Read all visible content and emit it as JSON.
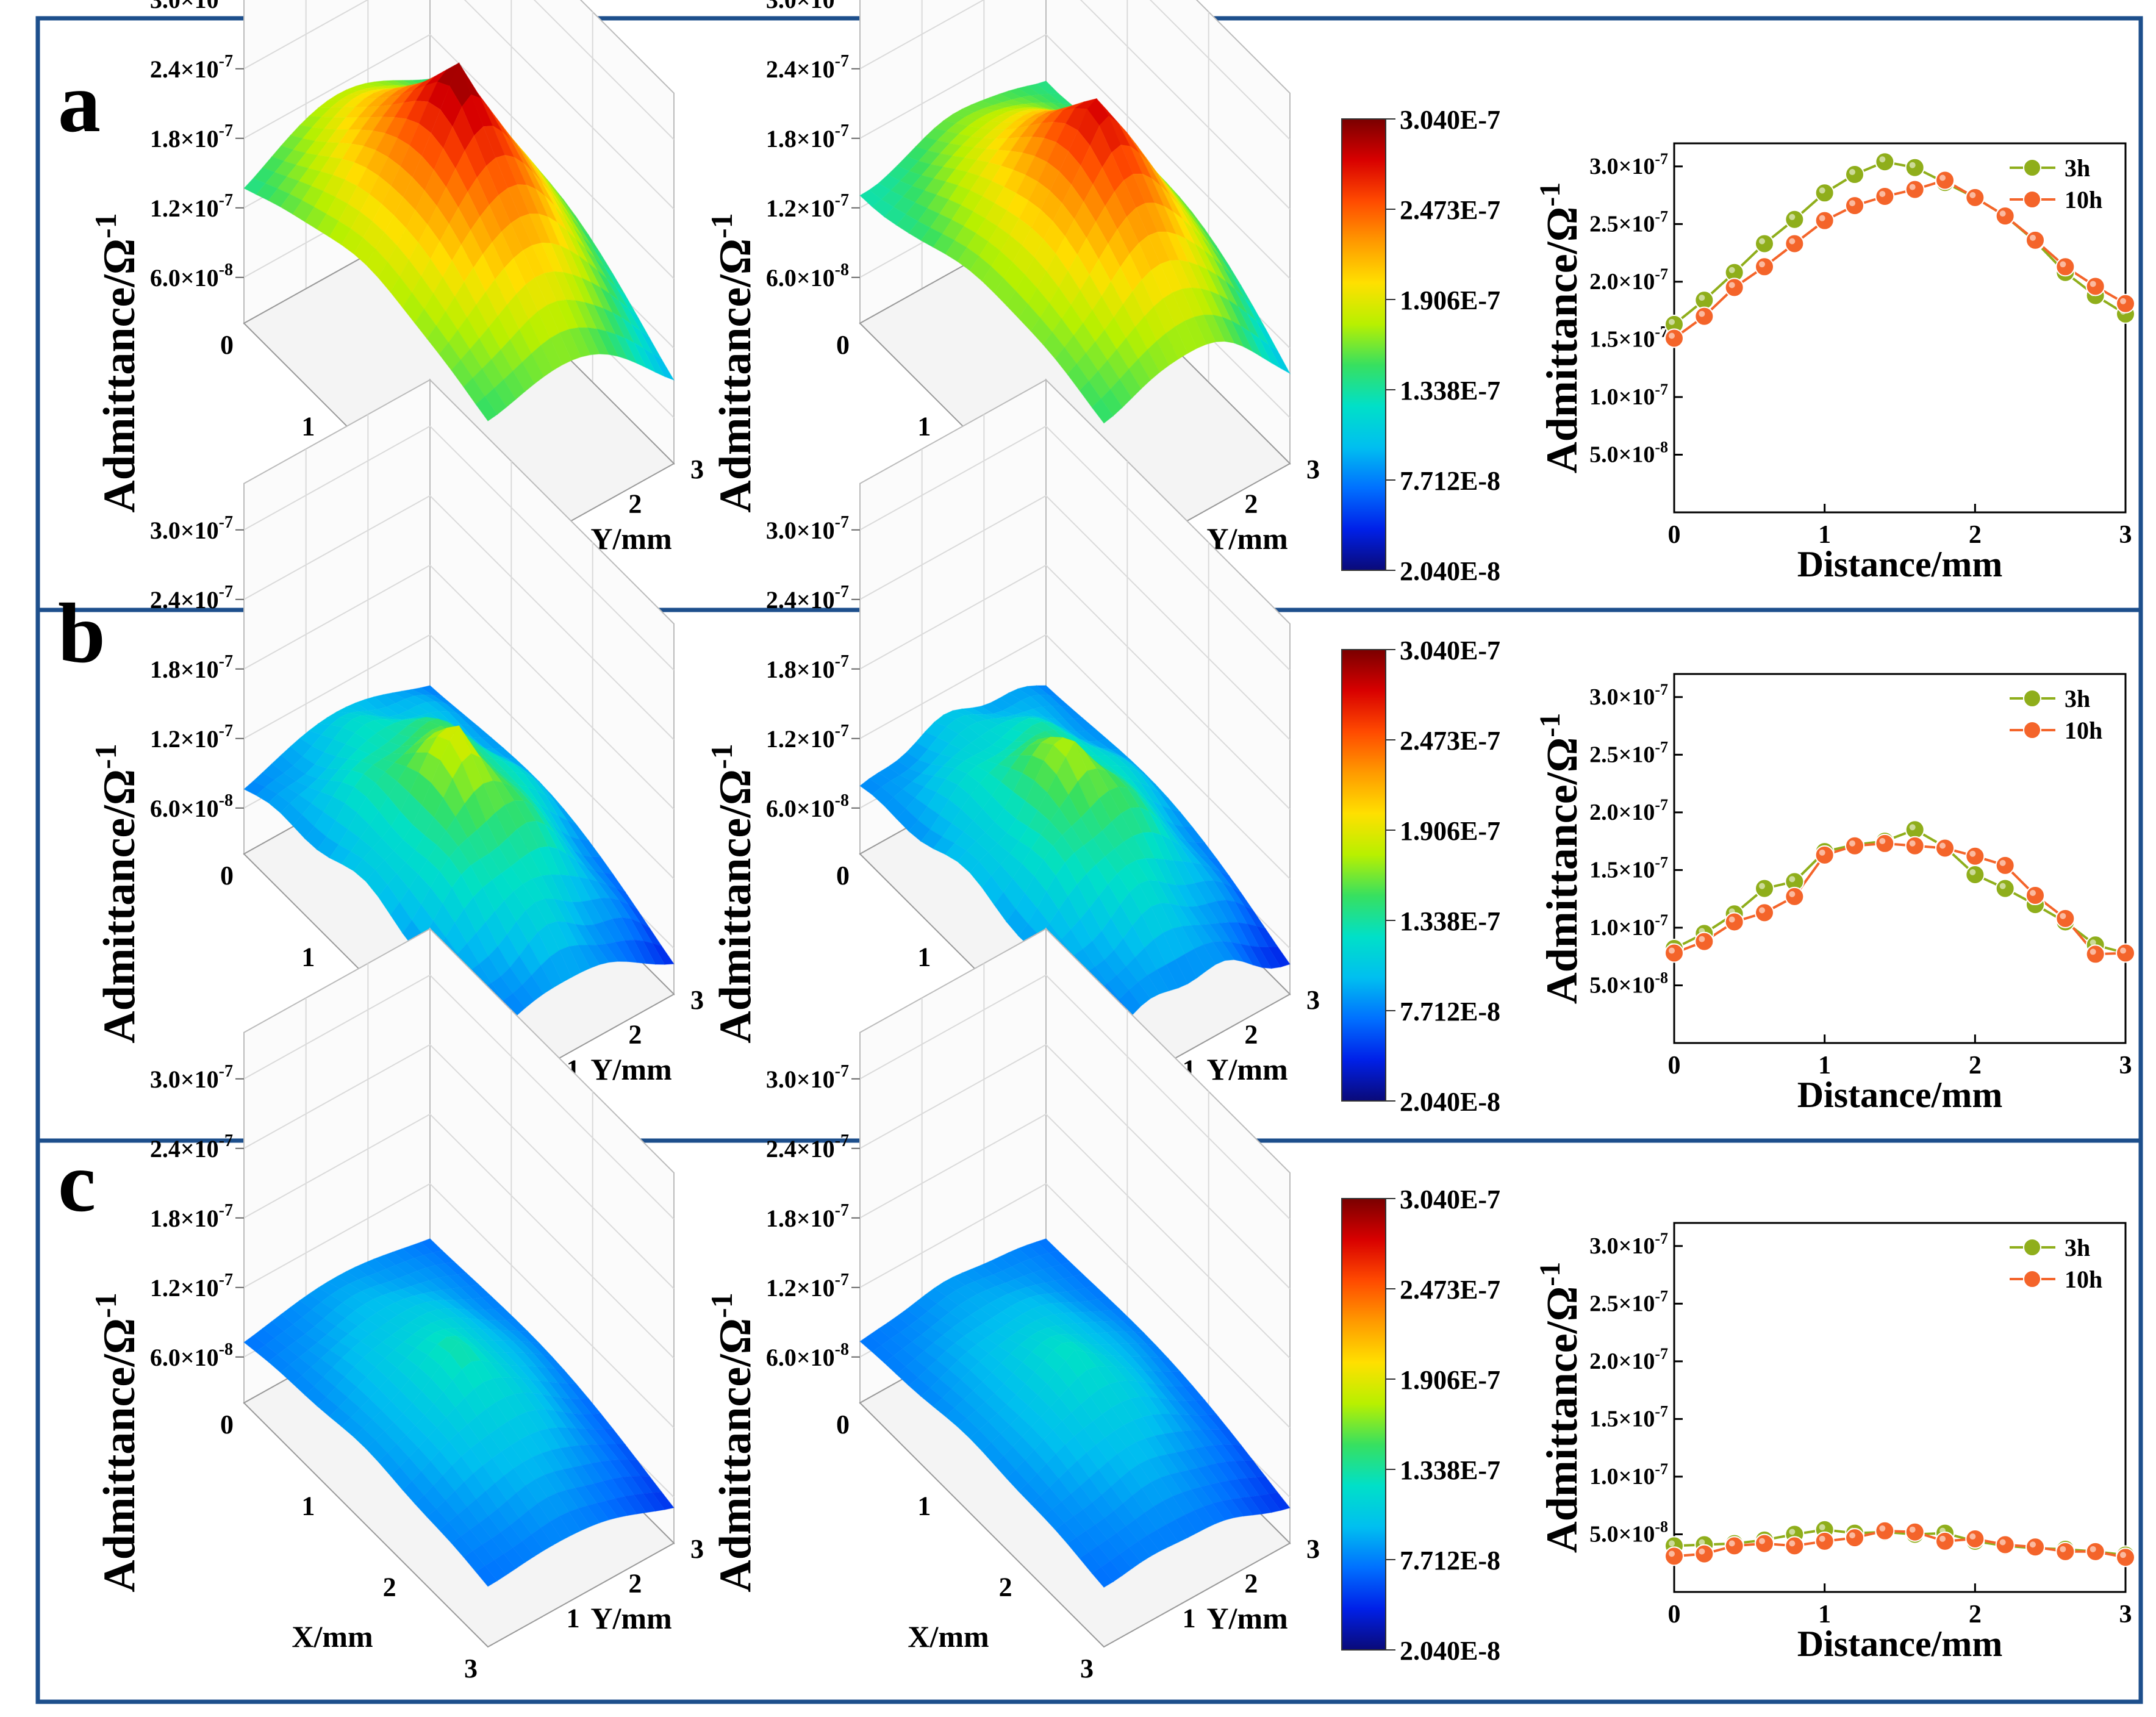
{
  "column_headers": [
    "3h",
    "10h"
  ],
  "colorbar": {
    "labels": [
      "3.040E-7",
      "2.473E-7",
      "1.906E-7",
      "1.338E-7",
      "7.712E-8",
      "2.040E-8"
    ],
    "colors": [
      "#7a0000",
      "#d80000",
      "#ff4a00",
      "#ff9a00",
      "#ffe000",
      "#b8f000",
      "#37e060",
      "#00e0c8",
      "#00bff0",
      "#0070ff",
      "#0020e8",
      "#0a0a78"
    ]
  },
  "surface_axes": {
    "z_label_main": "Admittance/Ω",
    "z_label_sup": "-1",
    "z_ticks": [
      {
        "m": "3.0×10",
        "e": "-7"
      },
      {
        "m": "2.4×10",
        "e": "-7"
      },
      {
        "m": "1.8×10",
        "e": "-7"
      },
      {
        "m": "1.2×10",
        "e": "-7"
      },
      {
        "m": "6.0×10",
        "e": "-8"
      }
    ],
    "x_label": "X/mm",
    "y_label": "Y/mm",
    "x_ticks": [
      "0",
      "1",
      "2",
      "3"
    ],
    "y_ticks": [
      "1",
      "2",
      "3"
    ]
  },
  "panels": [
    {
      "letter": "a",
      "line_ylabel_main": "Admittance/Ω",
      "line_ylabel_sup": "-1",
      "line_ylabel_suffix": "",
      "legend": [
        "3h",
        "10h"
      ]
    },
    {
      "letter": "b",
      "line_ylabel_main": "Admittance/Ω",
      "line_ylabel_sup": "-1",
      "line_ylabel_suffix": "",
      "legend": [
        "3h",
        "10h"
      ]
    },
    {
      "letter": "c",
      "line_ylabel_main": "Admittance/Ω",
      "line_ylabel_sup": "-1",
      "line_ylabel_suffix": "",
      "legend": [
        "3h",
        "10h"
      ]
    }
  ],
  "chart_data": [
    {
      "type": "line",
      "panel": "a",
      "xlabel": "Distance/mm",
      "ylabel": "Admittance/Ω-1",
      "xlim": [
        0,
        3
      ],
      "ylim": [
        0,
        3.2e-07
      ],
      "x_ticks": [
        "0",
        "1",
        "2",
        "3"
      ],
      "y_ticks": [
        {
          "m": "3.0×10",
          "e": "-7",
          "v": 3e-07
        },
        {
          "m": "2.5×10",
          "e": "-7",
          "v": 2.5e-07
        },
        {
          "m": "2.0×10",
          "e": "-7",
          "v": 2e-07
        },
        {
          "m": "1.5×10",
          "e": "-7",
          "v": 1.5e-07
        },
        {
          "m": "1.0×10",
          "e": "-7",
          "v": 1e-07
        },
        {
          "m": "5.0×10",
          "e": "-8",
          "v": 5e-08
        }
      ],
      "x": [
        0,
        0.2,
        0.4,
        0.6,
        0.8,
        1.0,
        1.2,
        1.4,
        1.6,
        1.8,
        2.0,
        2.2,
        2.4,
        2.6,
        2.8,
        3.0
      ],
      "series": [
        {
          "name": "3h",
          "color": "#8fae1b",
          "values": [
            1.63e-07,
            1.84e-07,
            2.08e-07,
            2.33e-07,
            2.54e-07,
            2.77e-07,
            2.93e-07,
            3.04e-07,
            2.99e-07,
            2.86e-07,
            2.73e-07,
            2.57e-07,
            2.35e-07,
            2.08e-07,
            1.88e-07,
            1.72e-07
          ]
        },
        {
          "name": "10h",
          "color": "#f4642a",
          "values": [
            1.51e-07,
            1.7e-07,
            1.95e-07,
            2.13e-07,
            2.33e-07,
            2.53e-07,
            2.66e-07,
            2.74e-07,
            2.8e-07,
            2.88e-07,
            2.73e-07,
            2.57e-07,
            2.36e-07,
            2.13e-07,
            1.96e-07,
            1.81e-07
          ]
        }
      ]
    },
    {
      "type": "line",
      "panel": "b",
      "xlabel": "Distance/mm",
      "ylabel": "Admittance/Ω-1",
      "xlim": [
        0,
        3
      ],
      "ylim": [
        0,
        3.2e-07
      ],
      "x_ticks": [
        "0",
        "1",
        "2",
        "3"
      ],
      "y_ticks": [
        {
          "m": "3.0×10",
          "e": "-7",
          "v": 3e-07
        },
        {
          "m": "2.5×10",
          "e": "-7",
          "v": 2.5e-07
        },
        {
          "m": "2.0×10",
          "e": "-7",
          "v": 2e-07
        },
        {
          "m": "1.5×10",
          "e": "-7",
          "v": 1.5e-07
        },
        {
          "m": "1.0×10",
          "e": "-7",
          "v": 1e-07
        },
        {
          "m": "5.0×10",
          "e": "-8",
          "v": 5e-08
        }
      ],
      "x": [
        0,
        0.2,
        0.4,
        0.6,
        0.8,
        1.0,
        1.2,
        1.4,
        1.6,
        1.8,
        2.0,
        2.2,
        2.4,
        2.6,
        2.8,
        3.0
      ],
      "series": [
        {
          "name": "3h",
          "color": "#8fae1b",
          "values": [
            8.2e-08,
            9.5e-08,
            1.12e-07,
            1.34e-07,
            1.4e-07,
            1.66e-07,
            1.72e-07,
            1.75e-07,
            1.85e-07,
            1.7e-07,
            1.46e-07,
            1.34e-07,
            1.2e-07,
            1.05e-07,
            8.5e-08,
            7.8e-08
          ]
        },
        {
          "name": "10h",
          "color": "#f4642a",
          "values": [
            7.8e-08,
            8.8e-08,
            1.05e-07,
            1.13e-07,
            1.27e-07,
            1.63e-07,
            1.71e-07,
            1.73e-07,
            1.71e-07,
            1.69e-07,
            1.62e-07,
            1.54e-07,
            1.28e-07,
            1.08e-07,
            7.7e-08,
            7.8e-08
          ]
        }
      ]
    },
    {
      "type": "line",
      "panel": "c",
      "xlabel": "Distance/mm",
      "ylabel": "Admittance/Ω-1",
      "xlim": [
        0,
        3
      ],
      "ylim": [
        0,
        3.2e-07
      ],
      "x_ticks": [
        "0",
        "1",
        "2",
        "3"
      ],
      "y_ticks": [
        {
          "m": "3.0×10",
          "e": "-7",
          "v": 3e-07
        },
        {
          "m": "2.5×10",
          "e": "-7",
          "v": 2.5e-07
        },
        {
          "m": "2.0×10",
          "e": "-7",
          "v": 2e-07
        },
        {
          "m": "1.5×10",
          "e": "-7",
          "v": 1.5e-07
        },
        {
          "m": "1.0×10",
          "e": "-7",
          "v": 1e-07
        },
        {
          "m": "5.0×10",
          "e": "-8",
          "v": 5e-08
        }
      ],
      "x": [
        0,
        0.2,
        0.4,
        0.6,
        0.8,
        1.0,
        1.2,
        1.4,
        1.6,
        1.8,
        2.0,
        2.2,
        2.4,
        2.6,
        2.8,
        3.0
      ],
      "series": [
        {
          "name": "3h",
          "color": "#8fae1b",
          "values": [
            4e-08,
            4.1e-08,
            4.2e-08,
            4.5e-08,
            5e-08,
            5.4e-08,
            5.1e-08,
            5.2e-08,
            5e-08,
            5.1e-08,
            4.4e-08,
            4e-08,
            3.8e-08,
            3.7e-08,
            3.5e-08,
            3.2e-08
          ]
        },
        {
          "name": "10h",
          "color": "#f4642a",
          "values": [
            3.1e-08,
            3.3e-08,
            4e-08,
            4.2e-08,
            4e-08,
            4.4e-08,
            4.7e-08,
            5.3e-08,
            5.2e-08,
            4.4e-08,
            4.6e-08,
            4.1e-08,
            3.9e-08,
            3.5e-08,
            3.5e-08,
            3e-08
          ]
        }
      ]
    },
    {
      "type": "heatmap",
      "panel": "a",
      "subtype": "3d-surface",
      "series": [
        {
          "name": "3h",
          "peak": 3.04e-07,
          "corners": [
            1.35e-07,
            1.45e-07,
            1.4e-07,
            9e-08
          ],
          "peak_pos": [
            1.5,
            1.5
          ],
          "bumps": 0.02
        },
        {
          "name": "10h",
          "peak": 2.88e-07,
          "corners": [
            1.3e-07,
            1.42e-07,
            1.4e-07,
            8.5e-08
          ],
          "peak_pos": [
            1.7,
            1.6
          ],
          "bumps": 0.02
        }
      ]
    },
    {
      "type": "heatmap",
      "panel": "b",
      "subtype": "3d-surface",
      "series": [
        {
          "name": "3h",
          "peak": 1.85e-07,
          "corners": [
            7.5e-08,
            7e-08,
            7.5e-08,
            4.5e-08
          ],
          "peak_pos": [
            1.5,
            1.5
          ],
          "bumps": 0.14
        },
        {
          "name": "10h",
          "peak": 1.75e-07,
          "corners": [
            7.5e-08,
            7e-08,
            7.5e-08,
            4.5e-08
          ],
          "peak_pos": [
            1.5,
            1.5
          ],
          "bumps": 0.14
        }
      ]
    },
    {
      "type": "heatmap",
      "panel": "c",
      "subtype": "3d-surface",
      "series": [
        {
          "name": "3h",
          "peak": 1.32e-07,
          "corners": [
            7.2e-08,
            7.2e-08,
            7.2e-08,
            5e-08
          ],
          "peak_pos": [
            1.5,
            1.5
          ],
          "bumps": 0.05
        },
        {
          "name": "10h",
          "peak": 1.26e-07,
          "corners": [
            7.2e-08,
            7.2e-08,
            7.2e-08,
            5e-08
          ],
          "peak_pos": [
            1.5,
            1.5
          ],
          "bumps": 0.05
        }
      ]
    }
  ]
}
